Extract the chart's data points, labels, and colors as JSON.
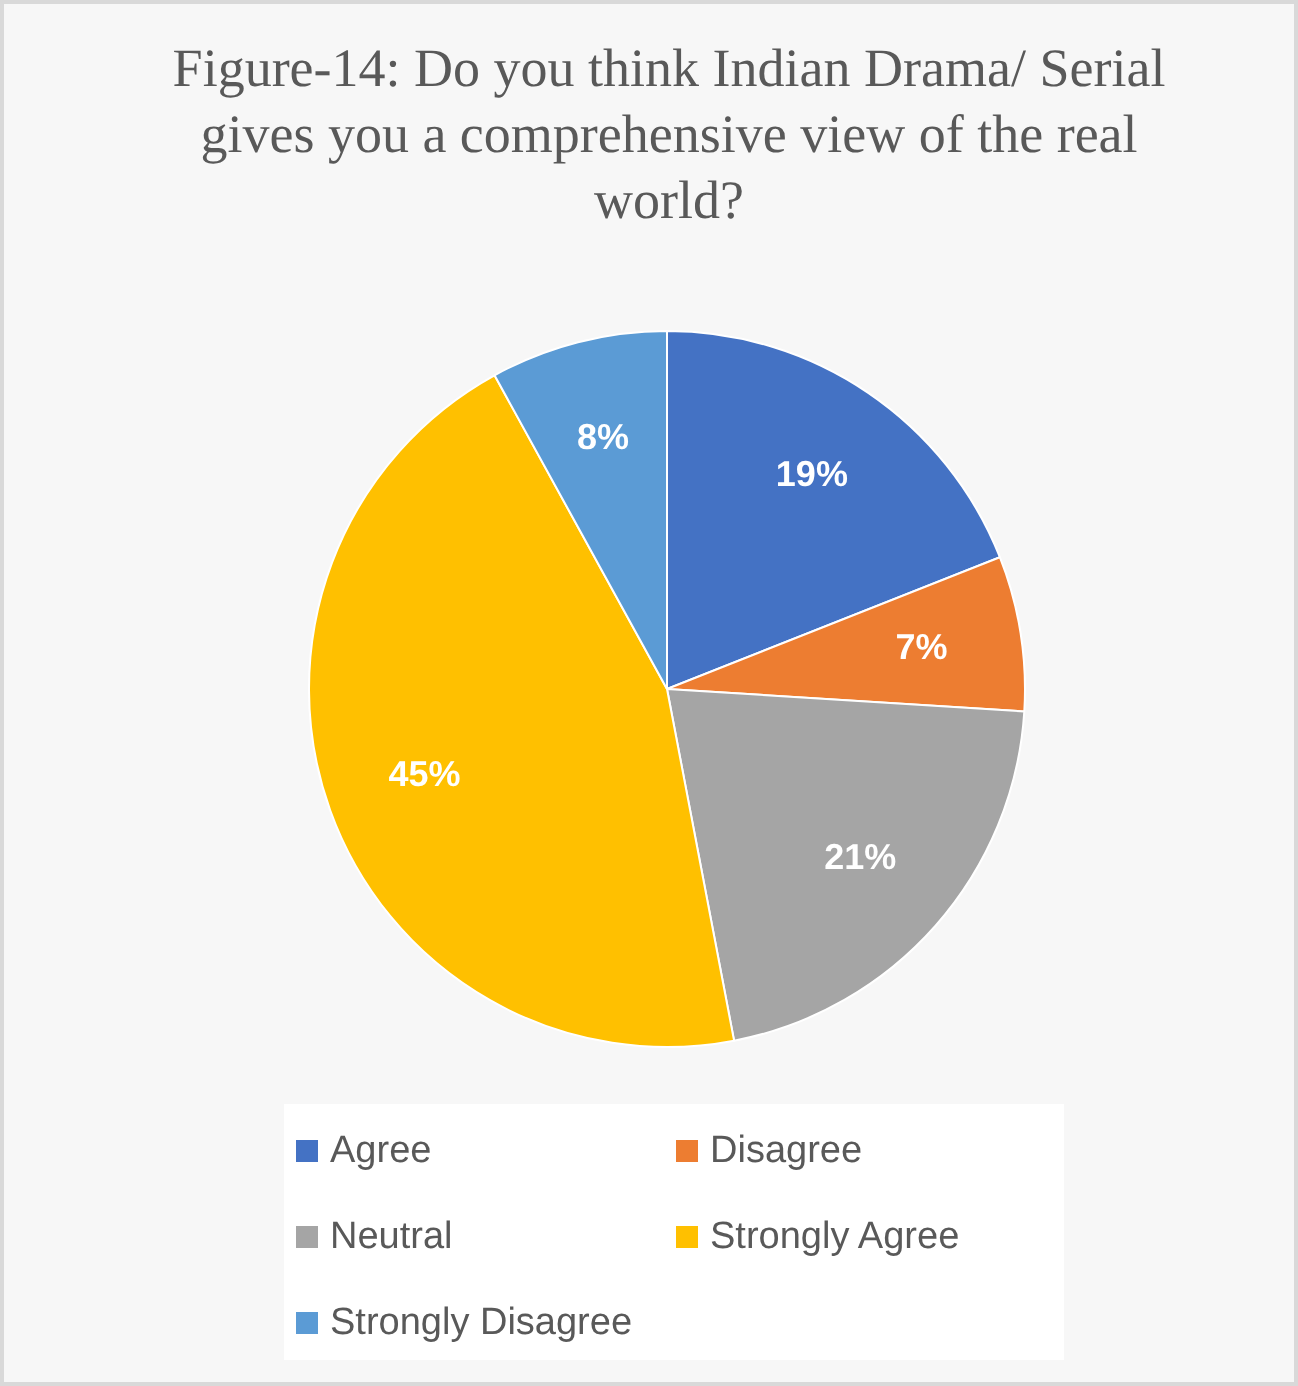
{
  "chart_data": {
    "type": "pie",
    "title": "Figure-14: Do you think Indian Drama/ Serial gives you a comprehensive view of the real world?",
    "categories": [
      "Agree",
      "Disagree",
      "Neutral",
      "Strongly Agree",
      "Strongly Disagree"
    ],
    "values": [
      19,
      7,
      21,
      45,
      8
    ],
    "colors": [
      "#4472c4",
      "#ed7d31",
      "#a5a5a5",
      "#ffc000",
      "#5b9bd5"
    ],
    "value_labels": [
      "19%",
      "7%",
      "21%",
      "45%",
      "8%"
    ],
    "legend": "bottom"
  }
}
